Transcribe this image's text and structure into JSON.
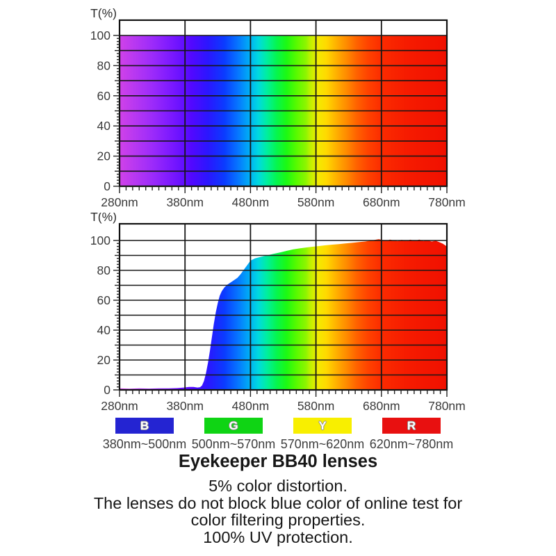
{
  "page": {
    "background": "#ffffff"
  },
  "spectrum_stops": [
    [
      280,
      "#d042e8"
    ],
    [
      305,
      "#b637f2"
    ],
    [
      330,
      "#9c2bfa"
    ],
    [
      360,
      "#7a18ff"
    ],
    [
      390,
      "#5208ff"
    ],
    [
      415,
      "#2b16ff"
    ],
    [
      440,
      "#0b3bff"
    ],
    [
      460,
      "#0673ff"
    ],
    [
      478,
      "#00adf5"
    ],
    [
      492,
      "#00d9e0"
    ],
    [
      505,
      "#00ef9f"
    ],
    [
      520,
      "#06f64e"
    ],
    [
      535,
      "#1cf913"
    ],
    [
      550,
      "#57fa00"
    ],
    [
      565,
      "#8ff500"
    ],
    [
      570,
      "#b5f200"
    ],
    [
      582,
      "#f2ec00"
    ],
    [
      596,
      "#ffd900"
    ],
    [
      610,
      "#ffb300"
    ],
    [
      625,
      "#ff8f00"
    ],
    [
      642,
      "#ff6300"
    ],
    [
      660,
      "#ff4200"
    ],
    [
      682,
      "#fb2a00"
    ],
    [
      720,
      "#f61b00"
    ],
    [
      780,
      "#f01000"
    ]
  ],
  "chart_data": [
    {
      "type": "area",
      "name": "visible-light-spectrum-reference",
      "y_axis_title": "T(%)",
      "x_unit": "nm",
      "x_range": [
        280,
        780
      ],
      "y_display_max": 110,
      "x_major_ticks": [
        280,
        380,
        480,
        580,
        680,
        780
      ],
      "x_tick_labels": [
        "280nm",
        "380nm",
        "480nm",
        "580nm",
        "680nm",
        "780nm"
      ],
      "x_minor_step": 10,
      "y_major_ticks": [
        0,
        20,
        40,
        60,
        80,
        100
      ],
      "y_grid_step": 10,
      "y_minor_step": 2,
      "grid": true,
      "fill": "spectrum-gradient",
      "series": [
        {
          "name": "reference transmission (100%)",
          "points": [
            [
              280,
              100
            ],
            [
              780,
              100
            ]
          ]
        }
      ]
    },
    {
      "type": "area",
      "name": "lens-transmission-curve",
      "y_axis_title": "T(%)",
      "x_unit": "nm",
      "x_range": [
        280,
        780
      ],
      "y_display_max": 110,
      "x_major_ticks": [
        280,
        380,
        480,
        580,
        680,
        780
      ],
      "x_tick_labels": [
        "280nm",
        "380nm",
        "480nm",
        "580nm",
        "680nm",
        "780nm"
      ],
      "x_minor_step": 10,
      "y_major_ticks": [
        0,
        20,
        40,
        60,
        80,
        100
      ],
      "y_grid_step": 10,
      "y_minor_step": 2,
      "grid": true,
      "fill": "spectrum-gradient",
      "series": [
        {
          "name": "Eyekeeper BB40 transmission",
          "points": [
            [
              280,
              1
            ],
            [
              295,
              0.8
            ],
            [
              310,
              1
            ],
            [
              325,
              0.9
            ],
            [
              340,
              1
            ],
            [
              355,
              1
            ],
            [
              368,
              1.2
            ],
            [
              378,
              1.6
            ],
            [
              386,
              2
            ],
            [
              393,
              2
            ],
            [
              399,
              1.6
            ],
            [
              403,
              1.8
            ],
            [
              406,
              3
            ],
            [
              409,
              6
            ],
            [
              412,
              11
            ],
            [
              415,
              18
            ],
            [
              418,
              26
            ],
            [
              421,
              35
            ],
            [
              424,
              44
            ],
            [
              427,
              52
            ],
            [
              430,
              58
            ],
            [
              433,
              63
            ],
            [
              436,
              66
            ],
            [
              440,
              68.5
            ],
            [
              445,
              70.5
            ],
            [
              450,
              72
            ],
            [
              455,
              73.5
            ],
            [
              460,
              75
            ],
            [
              465,
              77.5
            ],
            [
              470,
              80.5
            ],
            [
              475,
              83.5
            ],
            [
              480,
              86.5
            ],
            [
              487,
              88
            ],
            [
              495,
              89
            ],
            [
              505,
              90
            ],
            [
              515,
              91
            ],
            [
              525,
              92
            ],
            [
              535,
              93
            ],
            [
              545,
              94
            ],
            [
              555,
              94.7
            ],
            [
              565,
              95.3
            ],
            [
              575,
              95.8
            ],
            [
              585,
              96.3
            ],
            [
              595,
              96.8
            ],
            [
              605,
              97.2
            ],
            [
              615,
              97.6
            ],
            [
              625,
              98
            ],
            [
              635,
              98.4
            ],
            [
              645,
              98.9
            ],
            [
              655,
              99.3
            ],
            [
              663,
              99.8
            ],
            [
              670,
              100.4
            ],
            [
              676,
              100.9
            ],
            [
              682,
              100.3
            ],
            [
              688,
              99.8
            ],
            [
              693,
              100.6
            ],
            [
              699,
              100
            ],
            [
              705,
              99.6
            ],
            [
              711,
              100.4
            ],
            [
              718,
              99.7
            ],
            [
              724,
              100.5
            ],
            [
              731,
              99.8
            ],
            [
              738,
              100.6
            ],
            [
              744,
              99.6
            ],
            [
              750,
              100.2
            ],
            [
              757,
              99.3
            ],
            [
              763,
              99.8
            ],
            [
              769,
              98.8
            ],
            [
              774,
              97.8
            ],
            [
              780,
              96
            ]
          ]
        }
      ]
    }
  ],
  "legend": {
    "items": [
      {
        "letter": "B",
        "color": "#2424d2",
        "range": "380nm~500nm"
      },
      {
        "letter": "G",
        "color": "#0fd414",
        "range": "500nm~570nm"
      },
      {
        "letter": "Y",
        "color": "#f8ef00",
        "range": "570nm~620nm"
      },
      {
        "letter": "R",
        "color": "#e81010",
        "range": "620nm~780nm"
      }
    ]
  },
  "caption": {
    "title": "Eyekeeper BB40 lenses",
    "lines": [
      "5% color distortion.",
      "The lenses do not block blue color of online test for",
      "color filtering properties.",
      "100% UV protection."
    ]
  }
}
